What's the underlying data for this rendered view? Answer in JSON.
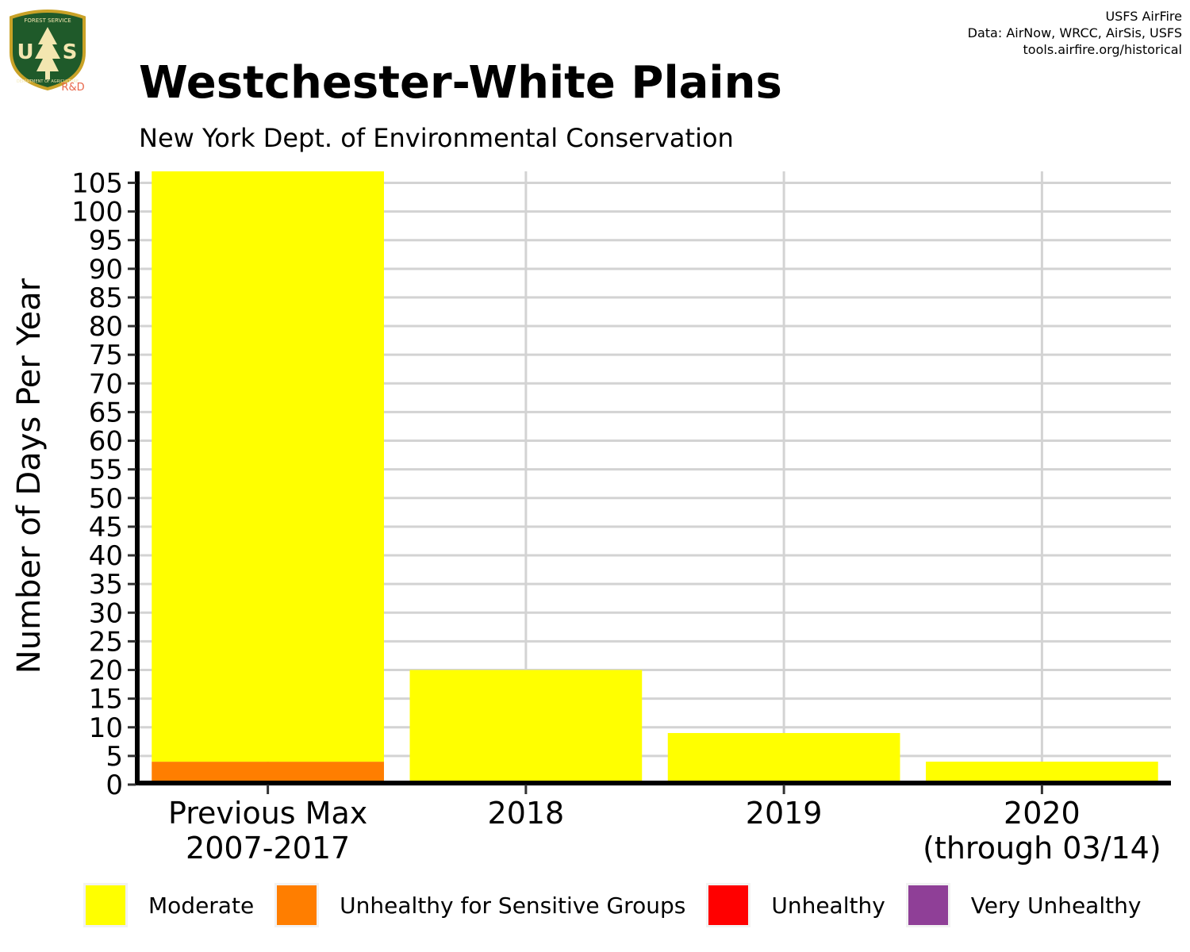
{
  "header": {
    "logo_text_top": "FOREST SERVICE",
    "logo_text_bottom": "DEPARTMENT OF AGRICULTURE",
    "logo_initials": "US",
    "logo_sub": "R&D",
    "credits": [
      "USFS AirFire",
      "Data: AirNow, WRCC, AirSis, USFS",
      "tools.airfire.org/historical"
    ]
  },
  "chart_data": {
    "type": "bar",
    "stacked": true,
    "title": "Westchester-White Plains",
    "subtitle": "New York Dept. of Environmental Conservation",
    "xlabel": "",
    "ylabel": "Number of Days Per Year",
    "ylim": [
      0,
      107
    ],
    "yticks": [
      0,
      5,
      10,
      15,
      20,
      25,
      30,
      35,
      40,
      45,
      50,
      55,
      60,
      65,
      70,
      75,
      80,
      85,
      90,
      95,
      100,
      105
    ],
    "grid": true,
    "legend_position": "bottom",
    "categories": [
      [
        "Previous Max",
        "2007-2017"
      ],
      [
        "2018"
      ],
      [
        "2019"
      ],
      [
        "2020",
        "(through 03/14)"
      ]
    ],
    "series": [
      {
        "name": "Unhealthy for Sensitive Groups",
        "color": "#ff7e00",
        "values": [
          4,
          0,
          0,
          0
        ]
      },
      {
        "name": "Moderate",
        "color": "#ffff00",
        "values": [
          103,
          20,
          9,
          4
        ]
      },
      {
        "name": "Unhealthy",
        "color": "#ff0000",
        "values": [
          0,
          0,
          0,
          0
        ]
      },
      {
        "name": "Very Unhealthy",
        "color": "#8f3f97",
        "values": [
          0,
          0,
          0,
          0
        ]
      }
    ],
    "legend": [
      {
        "label": "Moderate",
        "color": "#ffff00"
      },
      {
        "label": "Unhealthy for Sensitive Groups",
        "color": "#ff7e00"
      },
      {
        "label": "Unhealthy",
        "color": "#ff0000"
      },
      {
        "label": "Very Unhealthy",
        "color": "#8f3f97"
      }
    ]
  }
}
